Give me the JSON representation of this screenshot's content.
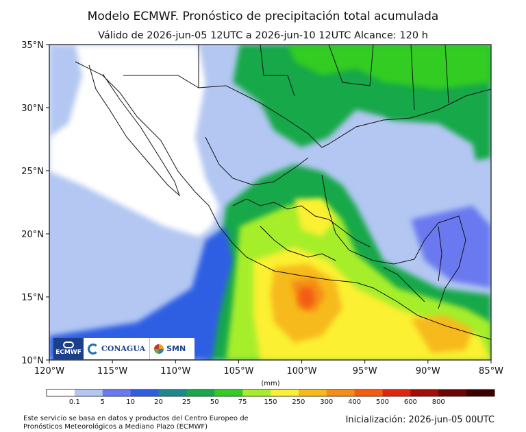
{
  "header": {
    "title": "Modelo ECMWF. Pronóstico de precipitación total acumulada",
    "subtitle": "Válido de 2026-jun-05 12UTC a 2026-jun-10 12UTC   Alcance: 120 h"
  },
  "map": {
    "lat_range": [
      10,
      35
    ],
    "lon_range": [
      -120,
      -85
    ],
    "lat_ticks": [
      "10°N",
      "15°N",
      "20°N",
      "25°N",
      "30°N",
      "35°N"
    ],
    "lon_ticks": [
      "120°W",
      "115°W",
      "110°W",
      "105°W",
      "100°W",
      "95°W",
      "90°W",
      "85°W"
    ],
    "max_precip_location": "Guerrero coast near 15°N 100°W"
  },
  "colorbar": {
    "unit_label": "(mm)",
    "bins": [
      {
        "label": "0.1",
        "color": "#ffffff"
      },
      {
        "label": "5",
        "color": "#b3c7f2"
      },
      {
        "label": "10",
        "color": "#6b79ef"
      },
      {
        "label": "20",
        "color": "#2f5ee3"
      },
      {
        "label": "25",
        "color": "#1a8a8e"
      },
      {
        "label": "50",
        "color": "#17a84a"
      },
      {
        "label": "75",
        "color": "#33cc22"
      },
      {
        "label": "150",
        "color": "#a6ee2c"
      },
      {
        "label": "250",
        "color": "#fbf033"
      },
      {
        "label": "300",
        "color": "#f7ba1c"
      },
      {
        "label": "400",
        "color": "#f58d17"
      },
      {
        "label": "500",
        "color": "#f45c12"
      },
      {
        "label": "600",
        "color": "#e0240d"
      },
      {
        "label": "800",
        "color": "#a30d08"
      },
      {
        "label": "",
        "color": "#6b0606"
      },
      {
        "label": "",
        "color": "#3d0000"
      }
    ]
  },
  "logos": {
    "ecmwf": "ECMWF",
    "conagua": "CONAGUA",
    "smn": "SMN"
  },
  "footer": {
    "credit": "Este servicio se basa en datos y productos del Centro Europeo de Pronósticos Meteorológicos a Mediano Plazo (ECMWF)",
    "init": "Inicialización: 2026-jun-05 00UTC"
  }
}
